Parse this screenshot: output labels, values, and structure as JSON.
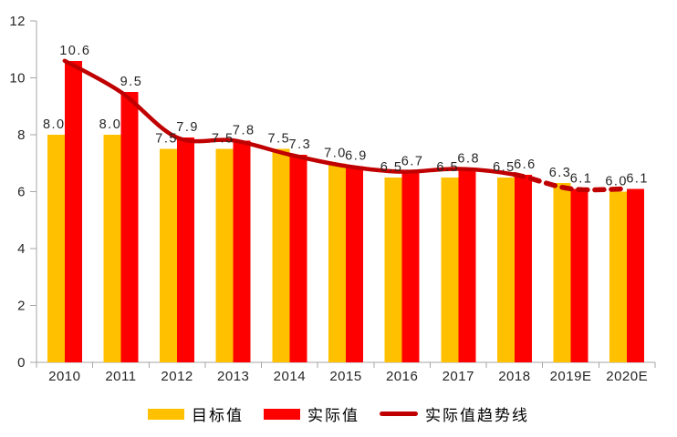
{
  "chart_data": {
    "type": "bar",
    "categories": [
      "2010",
      "2011",
      "2012",
      "2013",
      "2014",
      "2015",
      "2016",
      "2017",
      "2018",
      "2019E",
      "2020E"
    ],
    "series": [
      {
        "name": "目标值",
        "kind": "bar",
        "color": "#FFC000",
        "values": [
          8.0,
          8.0,
          7.5,
          7.5,
          7.5,
          7.0,
          6.5,
          6.5,
          6.5,
          6.3,
          6.0
        ]
      },
      {
        "name": "实际值",
        "kind": "bar",
        "color": "#FF0000",
        "values": [
          10.6,
          9.5,
          7.9,
          7.8,
          7.3,
          6.9,
          6.7,
          6.8,
          6.6,
          6.1,
          6.1
        ]
      },
      {
        "name": "实际值趋势线",
        "kind": "line",
        "color": "#C00000",
        "values": [
          10.6,
          9.5,
          7.9,
          7.8,
          7.3,
          6.9,
          6.7,
          6.8,
          6.6,
          6.1,
          6.1
        ],
        "dashed_from_index": 8
      }
    ],
    "ylim": [
      0,
      12
    ],
    "yticks": [
      0,
      2,
      4,
      6,
      8,
      10,
      12
    ],
    "grid": false,
    "legend_position": "bottom",
    "data_labels": true,
    "value_format_decimals": 1,
    "axis_color": "#A6A6A6",
    "text_color": "#262626"
  }
}
